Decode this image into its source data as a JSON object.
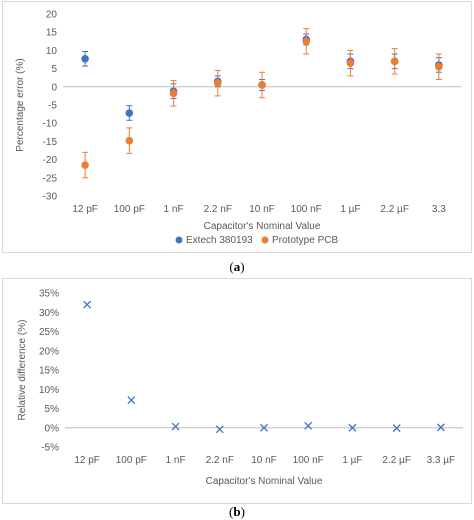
{
  "chart_data": [
    {
      "type": "scatter",
      "panel_label": "a",
      "xlabel": "Capacitor's Nominal Value",
      "ylabel": "Percentage error (%)",
      "categories": [
        "12 pF",
        "100 pF",
        "1 nF",
        "2.2 nF",
        "10 nF",
        "100 nF",
        "1 µF",
        "2.2 µF",
        "3.3"
      ],
      "ylim": [
        -30,
        20
      ],
      "yticks": [
        -30,
        -25,
        -20,
        -15,
        -10,
        -5,
        0,
        5,
        10,
        15,
        20
      ],
      "grid": false,
      "legend": "bottom",
      "series": [
        {
          "name": "Extech 380193",
          "color": "#4472c4",
          "marker": "circle",
          "values": [
            7.7,
            -7.2,
            -1.2,
            1.5,
            0.5,
            13.0,
            7.0,
            7.0,
            6.0
          ],
          "errors": [
            2.0,
            2.0,
            2.0,
            1.5,
            1.5,
            1.5,
            2.0,
            2.0,
            2.0
          ]
        },
        {
          "name": "Prototype PCB",
          "color": "#ed7d31",
          "marker": "circle",
          "values": [
            -21.5,
            -14.8,
            -1.8,
            1.0,
            0.5,
            12.5,
            6.5,
            7.0,
            5.5
          ],
          "errors": [
            3.5,
            3.5,
            3.5,
            3.5,
            3.5,
            3.5,
            3.5,
            3.5,
            3.5
          ]
        }
      ]
    },
    {
      "type": "scatter",
      "panel_label": "b",
      "xlabel": "Capacitor's Nominal Value",
      "ylabel": "Relative difference (%)",
      "categories": [
        "12 pF",
        "100 pF",
        "1 nF",
        "2.2 nF",
        "10 nF",
        "100 nF",
        "1 µF",
        "2.2 µF",
        "3.3 µF"
      ],
      "ylim": [
        -5,
        35
      ],
      "yticks": [
        -5,
        0,
        5,
        10,
        15,
        20,
        25,
        30,
        35
      ],
      "ytick_suffix": "%",
      "grid": false,
      "series": [
        {
          "color": "#4472c4",
          "marker": "x",
          "values": [
            32.0,
            7.2,
            0.3,
            -0.4,
            0.0,
            0.5,
            0.0,
            -0.1,
            0.1
          ]
        }
      ]
    }
  ]
}
